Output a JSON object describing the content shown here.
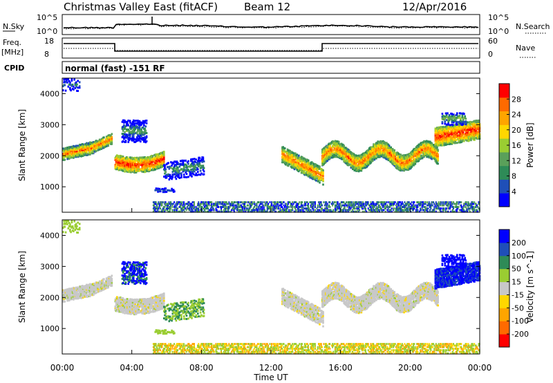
{
  "header": {
    "title": "Christmas Valley East (fitACF)",
    "beam": "Beam 12",
    "date": "12/Apr/2016"
  },
  "strip": {
    "nsky_label": "N.Sky",
    "nsearch_label": "N.Search",
    "nsky_ticks": [
      "10^5",
      "10^0"
    ],
    "nsearch_ticks": [
      "10^5",
      "10^0"
    ],
    "freq_label_1": "Freq.",
    "freq_label_2": "[MHz]",
    "freq_ticks": [
      "18",
      "8"
    ],
    "nave_label": "Nave",
    "nave_ticks": [
      "60",
      "0"
    ],
    "cpid_label": "CPID",
    "cpid_text": "normal (fast) -151 RF"
  },
  "colors": {
    "power_scale": [
      "#0000ff",
      "#1f4fb8",
      "#2e8b57",
      "#5aa05a",
      "#9acd32",
      "#ffd700",
      "#ffa500",
      "#ff6a00",
      "#ff0000"
    ],
    "velocity_scale": [
      "#ff0000",
      "#ff6a00",
      "#ffa500",
      "#ffd700",
      "#c8c8c8",
      "#9acd32",
      "#2e8b57",
      "#1f4fb8",
      "#0000ff"
    ]
  },
  "chart_data": [
    {
      "type": "heatmap",
      "name": "power",
      "ylabel": "Slant Range [km]",
      "yticks": [
        "4000",
        "3000",
        "2000",
        "1000"
      ],
      "colorbar_label": "Power [dB]",
      "colorbar_ticks": [
        "28",
        "24",
        "20",
        "16",
        "12",
        "8",
        "4"
      ],
      "ylim": [
        180,
        4500
      ],
      "xlim_hours": [
        0,
        24
      ]
    },
    {
      "type": "heatmap",
      "name": "velocity",
      "ylabel": "Slant Range [km]",
      "yticks": [
        "4000",
        "3000",
        "2000",
        "1000"
      ],
      "colorbar_label": "Velocity [m s^-1]",
      "colorbar_ticks": [
        "200",
        "100",
        "50",
        "15",
        "-15",
        "-50",
        "-100",
        "-200"
      ],
      "ylim": [
        180,
        4500
      ],
      "xlim_hours": [
        0,
        24
      ]
    }
  ],
  "xaxis": {
    "ticks": [
      "00:00",
      "04:00",
      "08:00",
      "12:00",
      "16:00",
      "20:00",
      "00:00"
    ],
    "label": "Time UT"
  }
}
